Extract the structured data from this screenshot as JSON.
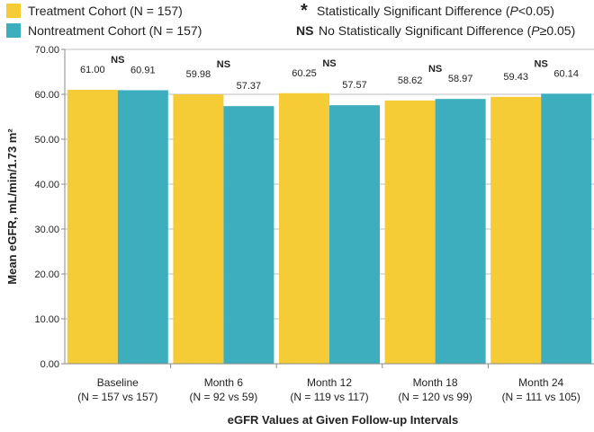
{
  "chart_data": {
    "type": "bar",
    "title": "",
    "xlabel": "eGFR Values at Given Follow-up Intervals",
    "ylabel": "Mean eGFR, mL/min/1.73 m²",
    "ylim": [
      0,
      70
    ],
    "yticks": [
      "0.00",
      "10.00",
      "20.00",
      "30.00",
      "40.00",
      "50.00",
      "60.00",
      "70.00"
    ],
    "ytick_values": [
      0,
      10,
      20,
      30,
      40,
      50,
      60,
      70
    ],
    "categories": [
      "Baseline",
      "Month 6",
      "Month 12",
      "Month 18",
      "Month 24"
    ],
    "category_sublabels": [
      "(N = 157 vs 157)",
      "(N = 92 vs 59)",
      "(N = 119 vs 117)",
      "(N = 120 vs 99)",
      "(N = 111 vs 105)"
    ],
    "significance": [
      "NS",
      "NS",
      "NS",
      "NS",
      "NS"
    ],
    "series": [
      {
        "name": "Treatment Cohort (N = 157)",
        "color": "#F5CB36",
        "values": [
          61.0,
          59.98,
          60.25,
          58.62,
          59.43
        ],
        "labels": [
          "61.00",
          "59.98",
          "60.25",
          "58.62",
          "59.43"
        ]
      },
      {
        "name": "Nontreatment Cohort (N = 157)",
        "color": "#3DAEBD",
        "values": [
          60.91,
          57.37,
          57.57,
          58.97,
          60.14
        ],
        "labels": [
          "60.91",
          "57.37",
          "57.57",
          "58.97",
          "60.14"
        ]
      }
    ],
    "legend": {
      "treatment": "Treatment Cohort (N = 157)",
      "nontreatment": "Nontreatment Cohort (N = 157)",
      "sig_symbol": "*",
      "sig_text_pre": "Statistically Significant Difference (",
      "sig_text_p": "P",
      "sig_text_post": "<0.05)",
      "ns_symbol": "NS",
      "ns_text_pre": "No Statistically Significant Difference (",
      "ns_text_p": "P",
      "ns_text_post": "≥0.05)"
    },
    "grid": true,
    "legend_position": "top"
  }
}
